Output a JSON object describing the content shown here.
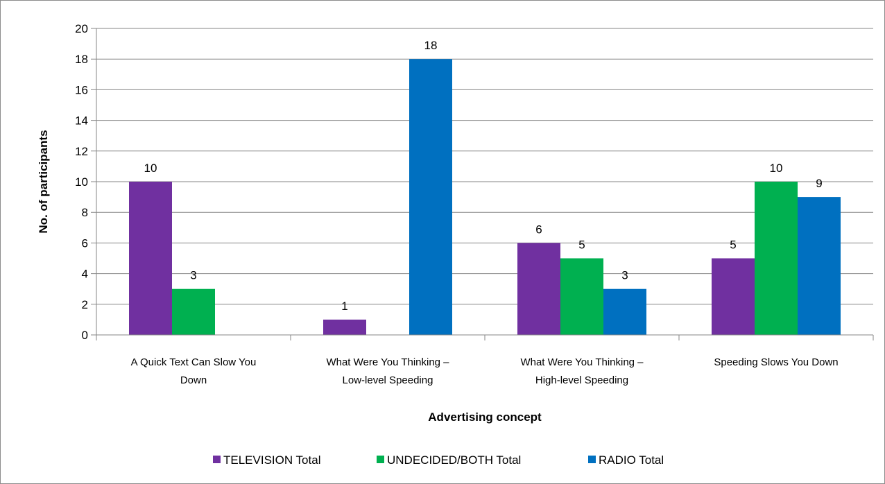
{
  "chart_data": {
    "type": "bar",
    "title": "",
    "xlabel": "Advertising concept",
    "ylabel": "No. of participants",
    "ylim": [
      0,
      20
    ],
    "ytick_step": 2,
    "grid": true,
    "legend_position": "bottom",
    "categories": [
      [
        "A Quick Text Can Slow You",
        "Down"
      ],
      [
        "What Were You Thinking –",
        "Low-level Speeding"
      ],
      [
        "What Were You Thinking –",
        "High-level Speeding"
      ],
      [
        "Speeding Slows You Down"
      ]
    ],
    "series": [
      {
        "name": "TELEVISION Total",
        "color": "#7030A0",
        "values": [
          10,
          1,
          6,
          5
        ]
      },
      {
        "name": "UNDECIDED/BOTH Total",
        "color": "#00B050",
        "values": [
          3,
          null,
          5,
          10
        ]
      },
      {
        "name": "RADIO Total",
        "color": "#0070C0",
        "values": [
          null,
          18,
          3,
          9
        ]
      }
    ]
  }
}
